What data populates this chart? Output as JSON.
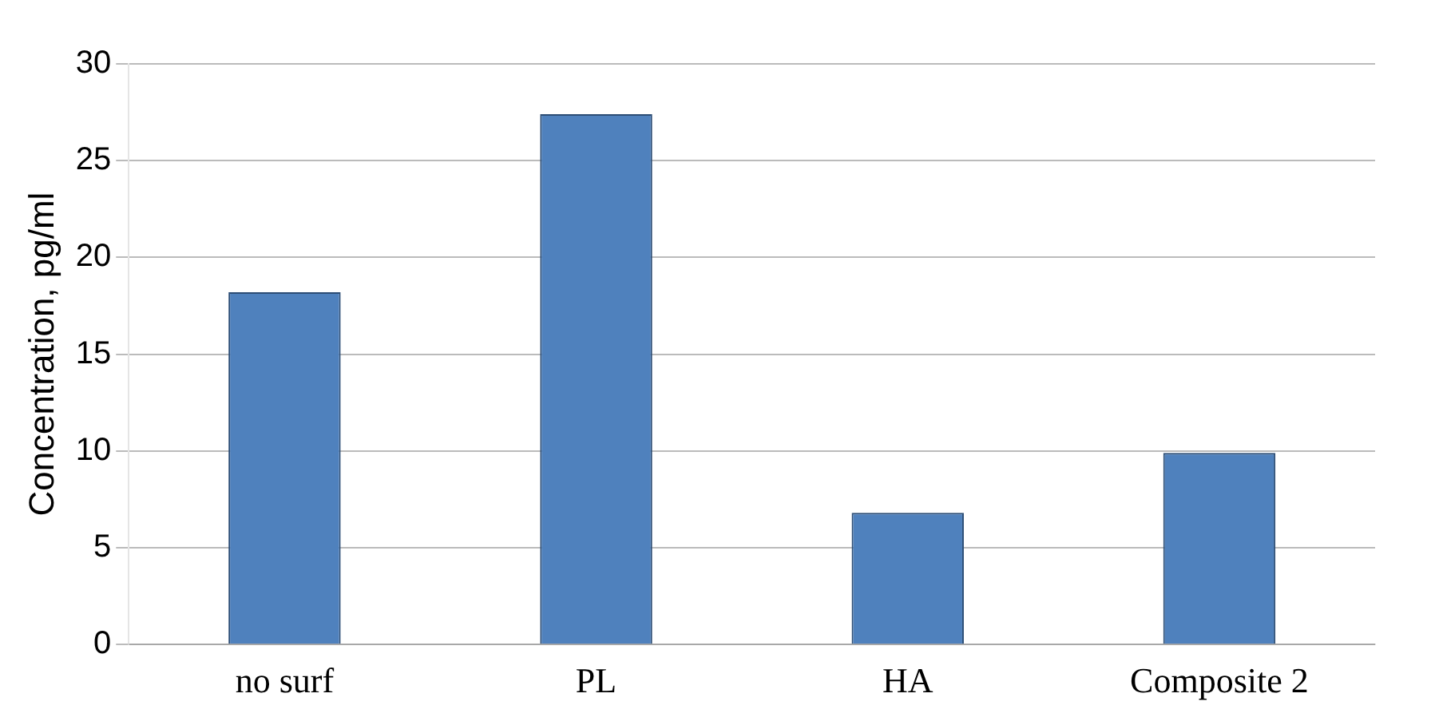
{
  "chart_data": {
    "type": "bar",
    "ylabel": "Concentration, pg/ml",
    "categories": [
      "no surf",
      "PL",
      "HA",
      "Composite 2"
    ],
    "values": [
      18.2,
      27.4,
      6.8,
      9.9
    ],
    "color": "#4f81bd",
    "ylim": [
      0,
      30
    ],
    "yticks": [
      0,
      5,
      10,
      15,
      20,
      25,
      30
    ],
    "grid": "y"
  }
}
